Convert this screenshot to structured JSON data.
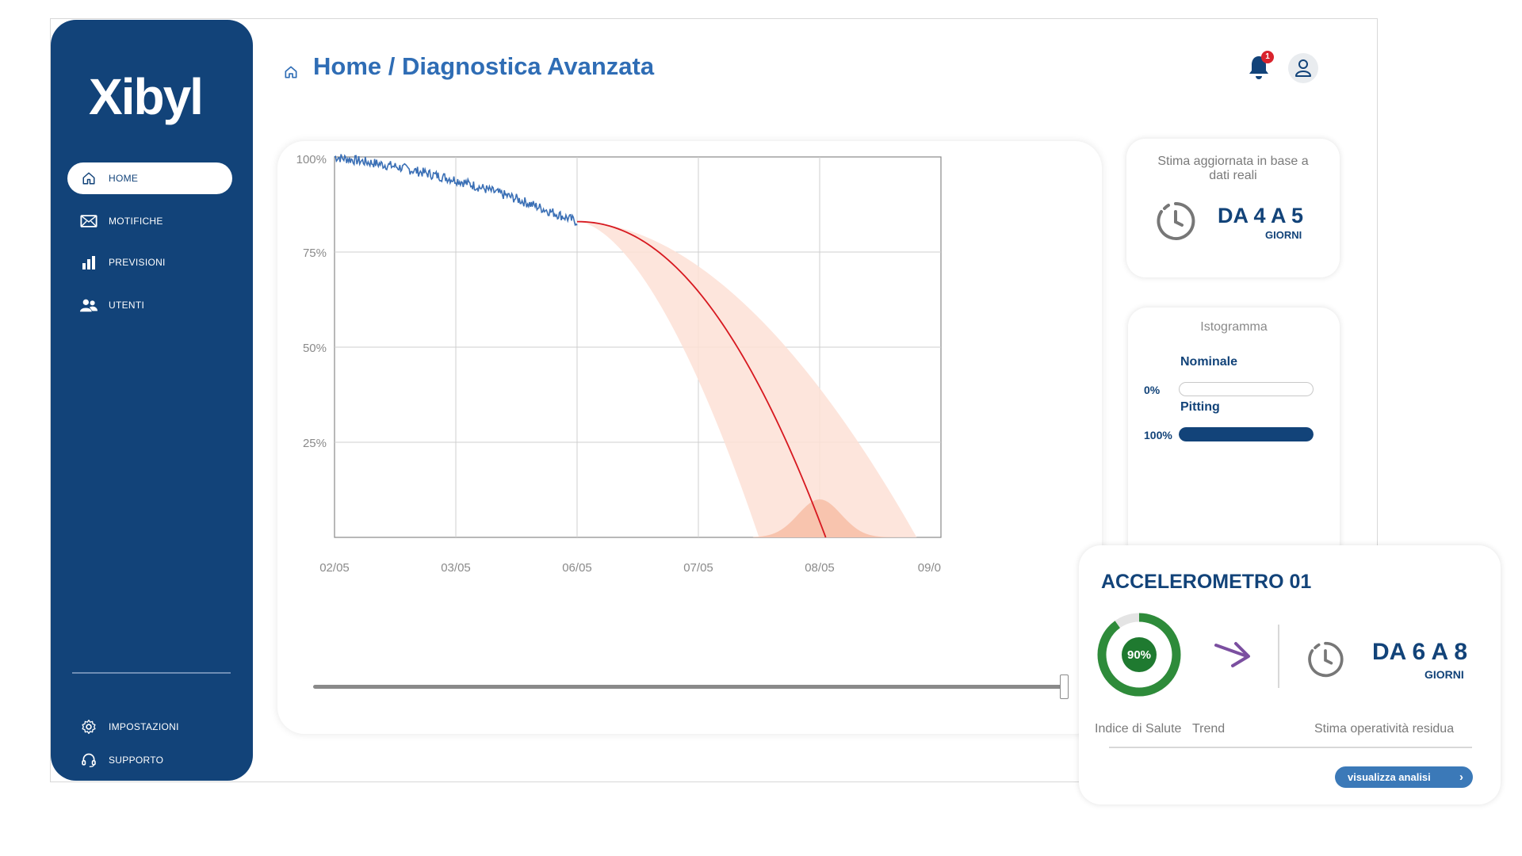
{
  "app": {
    "logo": "Xibyl"
  },
  "sidebar": {
    "items": [
      {
        "label": "HOME",
        "icon": "home-icon",
        "active": true
      },
      {
        "label": "MOTIFICHE",
        "icon": "envelope-icon"
      },
      {
        "label": "PREVISIONI",
        "icon": "bar-chart-icon"
      },
      {
        "label": "UTENTI",
        "icon": "users-icon"
      }
    ],
    "bottom_items": [
      {
        "label": "IMPOSTAZIONI",
        "icon": "gear-icon"
      },
      {
        "label": "SUPPORTO",
        "icon": "headset-icon"
      }
    ]
  },
  "header": {
    "breadcrumb": "Home / Diagnostica Avanzata",
    "notification_count": "1"
  },
  "chart_data": {
    "type": "line",
    "x_categories": [
      "02/05",
      "03/05",
      "06/05",
      "07/05",
      "08/05",
      "09/0"
    ],
    "y_ticks": [
      "100%",
      "75%",
      "50%",
      "25%"
    ],
    "ylim": [
      0,
      100
    ],
    "grid": true,
    "series": [
      {
        "role": "measured",
        "color": "#3a6fb5",
        "x": [
          0,
          0.5,
          1,
          1.5,
          2
        ],
        "y": [
          100,
          97.5,
          94,
          89,
          83
        ]
      },
      {
        "role": "forecast",
        "color": "#d71920",
        "x": [
          2,
          2.5,
          3,
          3.5,
          4.05
        ],
        "y": [
          83,
          76,
          61,
          38,
          0
        ]
      }
    ],
    "confidence_band": {
      "color": "#fde1d6",
      "upper": {
        "x": [
          2,
          3,
          4,
          4.8
        ],
        "y": [
          83,
          72,
          42,
          0
        ]
      },
      "lower": {
        "x": [
          2,
          2.5,
          3,
          3.5
        ],
        "y": [
          83,
          68,
          42,
          0
        ]
      }
    },
    "distribution_peak_x": 4.0
  },
  "stima": {
    "text": "Stima aggiornata in base a dati reali",
    "value": "DA 4 A 5",
    "unit": "GIORNI"
  },
  "istogramma": {
    "title": "Istogramma",
    "rows": [
      {
        "label": "Nominale",
        "pct": "0%",
        "value": 0
      },
      {
        "label": "Pitting",
        "pct": "100%",
        "value": 1
      }
    ]
  },
  "accelerometro": {
    "title": "ACCELEROMETRO 01",
    "health_label": "90%",
    "health_value": 0.9,
    "health_caption": "Indice di Salute",
    "trend_caption": "Trend",
    "residual_caption": "Stima operatività residua",
    "residual_value": "DA 6 A 8",
    "residual_unit": "GIORNI",
    "button": "visualizza analisi",
    "colors": {
      "health": "#2e8b3a",
      "trend": "#7b4fa0"
    }
  }
}
